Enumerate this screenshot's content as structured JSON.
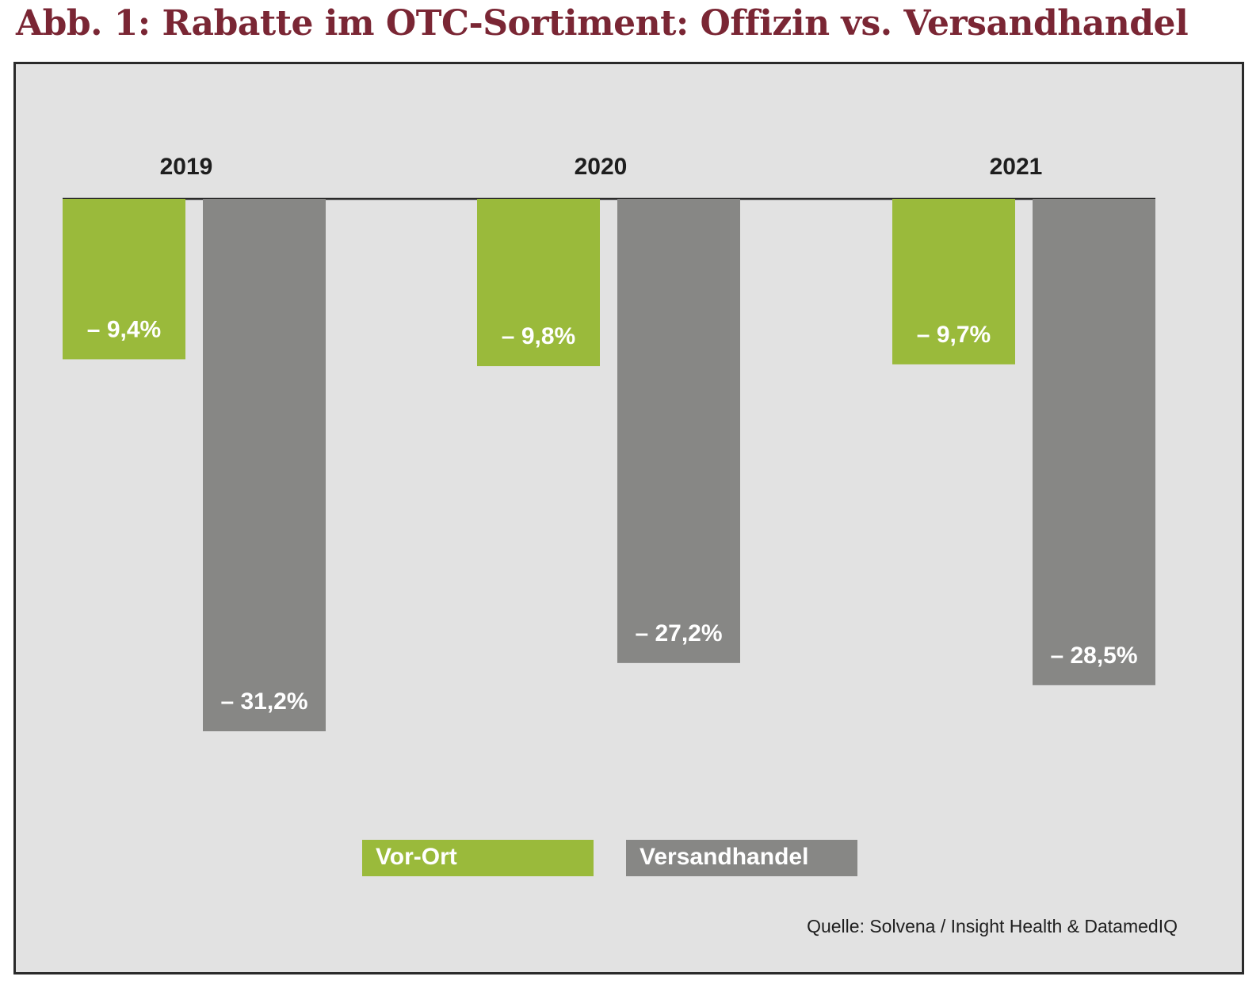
{
  "title": "Abb. 1: Rabatte im OTC-Sortiment: Offizin vs. Versandhandel",
  "source": "Quelle: Solvena / Insight Health & DatamedIQ",
  "colors": {
    "title": "#7a2634",
    "vor_ort": "#9aba3b",
    "versandhandel": "#878785",
    "panel_bg": "#e2e2e2",
    "label": "#ffffff",
    "year": "#1e1e1e"
  },
  "chart_data": {
    "type": "bar",
    "orientation": "vertical, hanging from top baseline (negative values)",
    "categories": [
      "2019",
      "2020",
      "2021"
    ],
    "series": [
      {
        "name": "Vor-Ort",
        "values": [
          -9.4,
          -9.8,
          -9.7
        ],
        "labels": [
          "– 9,4%",
          "– 9,8%",
          "– 9,7%"
        ]
      },
      {
        "name": "Versandhandel",
        "values": [
          -31.2,
          -27.2,
          -28.5
        ],
        "labels": [
          "– 31,2%",
          "– 27,2%",
          "– 28,5%"
        ]
      }
    ],
    "title": "Abb. 1: Rabatte im OTC-Sortiment: Offizin vs. Versandhandel",
    "xlabel": "",
    "ylabel": "",
    "ylim": [
      -31.2,
      0
    ],
    "grid": false,
    "legend": [
      "Vor-Ort",
      "Versandhandel"
    ],
    "legend_position": "bottom-center"
  }
}
